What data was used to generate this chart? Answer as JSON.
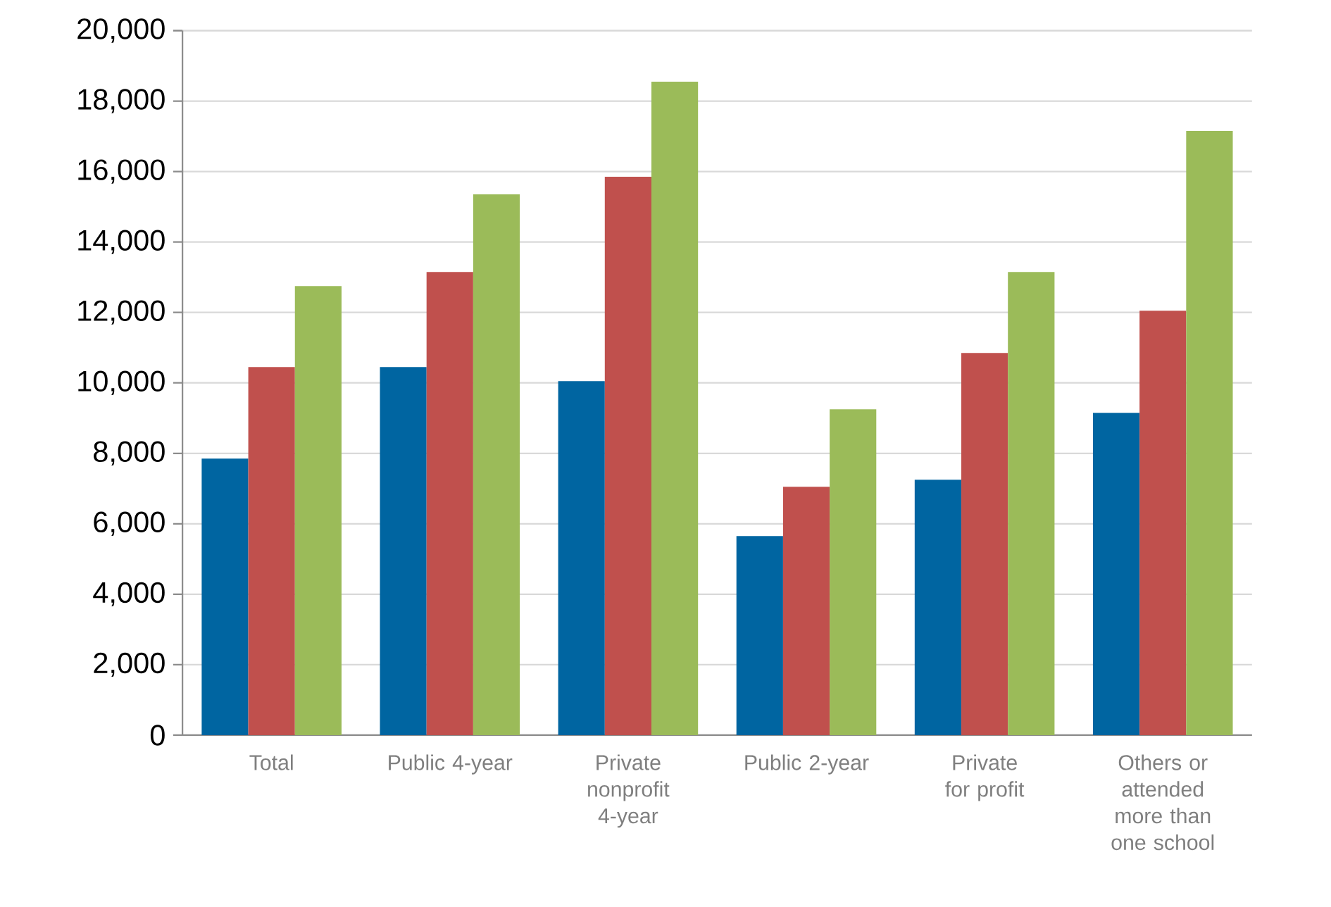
{
  "chart_data": {
    "type": "bar",
    "categories": [
      "Total",
      "Public 4-year",
      "Private nonprofit 4-year",
      "Public 2-year",
      "Private for profit",
      "Others or attended more than one school"
    ],
    "series": [
      {
        "color": "#0065a1",
        "values": [
          7850,
          10450,
          10050,
          5650,
          7250,
          9150
        ]
      },
      {
        "color": "#c0504d",
        "values": [
          10450,
          13150,
          15850,
          7050,
          10850,
          12050
        ]
      },
      {
        "color": "#9bbb59",
        "values": [
          12750,
          15350,
          18550,
          9250,
          13150,
          17150
        ]
      }
    ],
    "ylim": [
      0,
      20000
    ],
    "yticks": [
      {
        "value": 0,
        "label": "0"
      },
      {
        "value": 2000,
        "label": "2,000"
      },
      {
        "value": 4000,
        "label": "4,000"
      },
      {
        "value": 6000,
        "label": "6,000"
      },
      {
        "value": 8000,
        "label": "8,000"
      },
      {
        "value": 10000,
        "label": "10,000"
      },
      {
        "value": 12000,
        "label": "12,000"
      },
      {
        "value": 14000,
        "label": "14,000"
      },
      {
        "value": 16000,
        "label": "16,000"
      },
      {
        "value": 18000,
        "label": "18,000"
      },
      {
        "value": 20000,
        "label": "20,000"
      }
    ],
    "grid": "y"
  }
}
